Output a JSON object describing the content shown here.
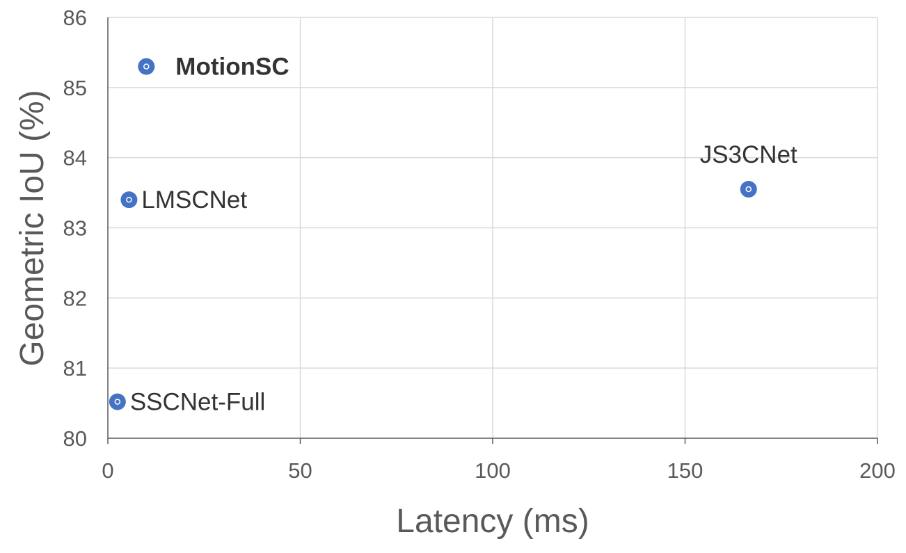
{
  "chart_data": {
    "type": "scatter",
    "title": "",
    "xlabel": "Latency (ms)",
    "ylabel": "Geometric IoU (%)",
    "xlim": [
      0,
      200
    ],
    "ylim": [
      80,
      86
    ],
    "xticks": [
      "0",
      "50",
      "100",
      "150",
      "200"
    ],
    "yticks": [
      "80",
      "81",
      "82",
      "83",
      "84",
      "85",
      "86"
    ],
    "grid": true,
    "legend": "none",
    "marker_color": "#4472C4",
    "points": [
      {
        "label": "MotionSC",
        "x": 10,
        "y": 85.3,
        "bold": true,
        "label_position": "right"
      },
      {
        "label": "LMSCNet",
        "x": 5.5,
        "y": 83.4,
        "bold": false,
        "label_position": "right"
      },
      {
        "label": "JS3CNet",
        "x": 166.5,
        "y": 83.55,
        "bold": false,
        "label_position": "above"
      },
      {
        "label": "SSCNet-Full",
        "x": 2.5,
        "y": 80.52,
        "bold": false,
        "label_position": "right"
      }
    ]
  }
}
